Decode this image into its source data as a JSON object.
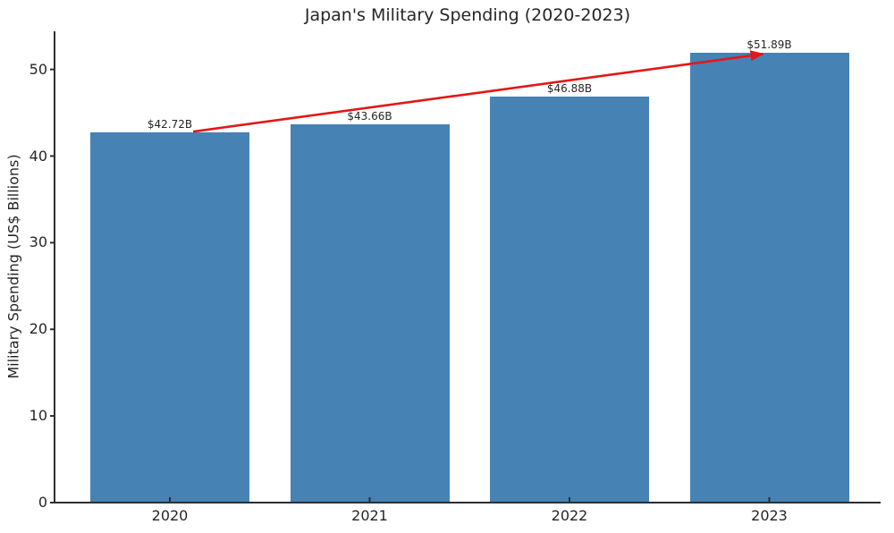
{
  "chart_data": {
    "type": "bar",
    "title": "Japan's Military Spending (2020-2023)",
    "ylabel": "Military Spending (US$ Billions)",
    "xlabel": "",
    "categories": [
      "2020",
      "2021",
      "2022",
      "2023"
    ],
    "values": [
      42.72,
      43.66,
      46.88,
      51.89
    ],
    "bar_labels": [
      "$42.72B",
      "$43.66B",
      "$46.88B",
      "$51.89B"
    ],
    "yticks": [
      0,
      10,
      20,
      30,
      40,
      50
    ],
    "ylim": [
      0,
      54.4
    ],
    "grid": false,
    "legend": false,
    "bar_color": "#4682B4",
    "text_color": "#262626",
    "axis_color": "#2e2e2e",
    "annotation_arrow": {
      "from_category": "2020",
      "to_category": "2023",
      "color": "#e31717"
    }
  }
}
